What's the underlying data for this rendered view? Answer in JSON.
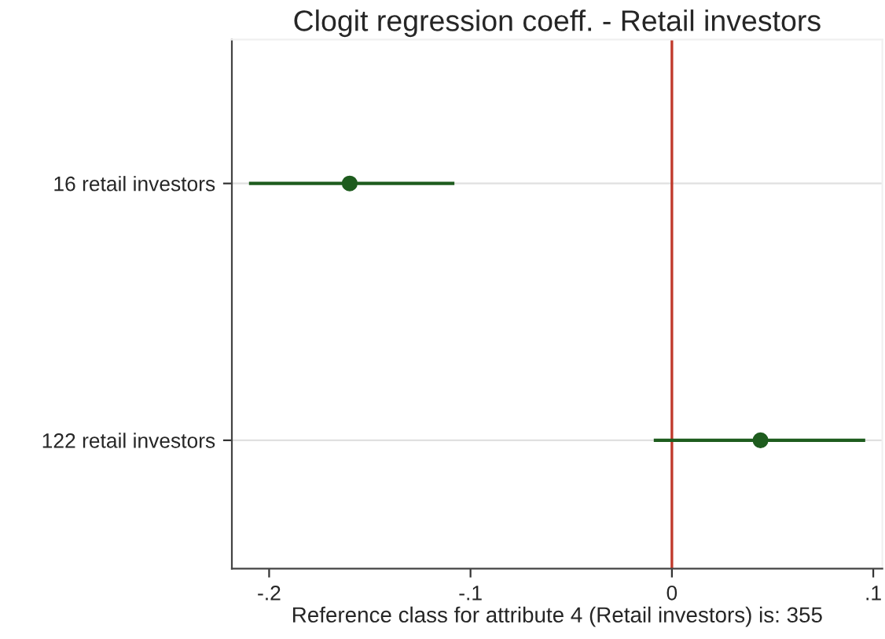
{
  "chart_data": {
    "type": "scatter",
    "orientation": "horizontal",
    "title": "Clogit regression coeff. - Retail investors",
    "xlabel": "Reference class for attribute 4 (Retail investors) is: 355",
    "categories": [
      "16 retail investors",
      "122 retail investors"
    ],
    "series": [
      {
        "color": "#1e5c1e",
        "values": [
          -0.16,
          0.044
        ],
        "errors": [
          [
            -0.21,
            -0.108
          ],
          [
            -0.009,
            0.096
          ]
        ]
      }
    ],
    "xlim": [
      -0.2185,
      0.1045
    ],
    "xticks": [
      {
        "value": -0.2,
        "label": "-.2"
      },
      {
        "value": -0.1,
        "label": "-.1"
      },
      0,
      {
        "value": 0.1,
        "label": ".1"
      }
    ],
    "ref_lines": [
      {
        "axis": "x",
        "value": 0,
        "color": "#c0392b"
      }
    ],
    "grid": "y",
    "marker": "circle"
  }
}
